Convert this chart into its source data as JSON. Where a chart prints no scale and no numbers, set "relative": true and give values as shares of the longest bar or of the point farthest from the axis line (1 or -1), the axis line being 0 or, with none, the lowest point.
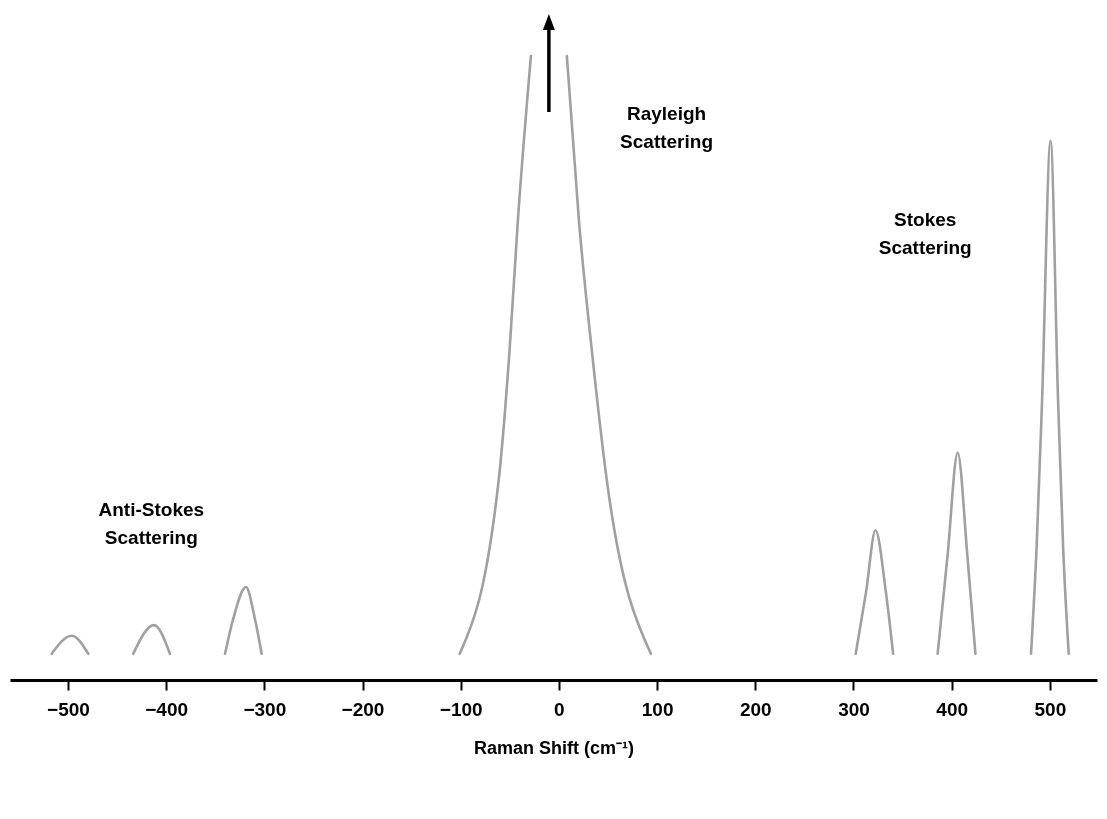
{
  "chart_data": {
    "type": "line",
    "relative": true,
    "xlabel": "Raman Shift (cm⁻¹)",
    "xlim": [
      -559,
      548
    ],
    "xticks": [
      -500,
      -400,
      -300,
      -200,
      -100,
      0,
      100,
      200,
      300,
      400,
      500
    ],
    "grid": false,
    "line_style": "solid",
    "x": [
      -516.6,
      -496.2,
      -479.3,
      -456,
      -433.5,
      -412.4,
      -396.1,
      -370,
      -340,
      -331.7,
      -318.7,
      -309.6,
      -302.7,
      -200,
      -101,
      -61.4,
      -50.3,
      -41.8,
      -28.5,
      -10,
      8.1,
      20.4,
      33.6,
      48.9,
      93.7,
      200,
      302.3,
      312.9,
      322.4,
      332.9,
      340.4,
      362,
      385.7,
      395.9,
      406.1,
      415.9,
      424.2,
      452,
      480.8,
      486.5,
      492.1,
      500.7,
      508.3,
      513.5,
      519.2
    ],
    "series": [
      {
        "color": "#a0a0a0",
        "values": [
          0.042,
          0.071,
          0.042,
          null,
          0.042,
          0.088,
          0.042,
          null,
          0.042,
          0.098,
          0.149,
          0.098,
          0.042,
          null,
          0.042,
          0.319,
          0.527,
          0.736,
          1,
          null,
          1,
          0.736,
          0.527,
          0.319,
          0.042,
          null,
          0.042,
          0.142,
          0.24,
          0.142,
          0.042,
          null,
          0.042,
          0.201,
          0.364,
          0.201,
          0.042,
          null,
          0.042,
          0.213,
          0.45,
          0.864,
          0.45,
          0.213,
          0.042
        ]
      }
    ],
    "annotations": [
      "Rayleigh Scattering",
      "Stokes Scattering",
      "Anti-Stokes Scattering"
    ]
  }
}
